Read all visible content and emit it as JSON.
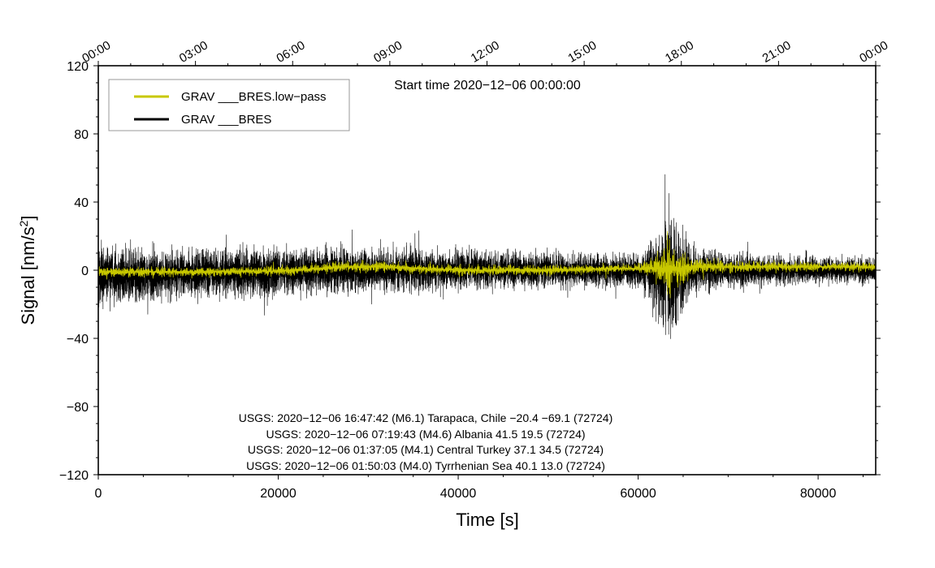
{
  "chart_data": {
    "type": "line",
    "title": "",
    "xlabel": "Time [s]",
    "ylabel_main": "Signal [nm/s",
    "ylabel_sup": "2",
    "ylabel_tail": "]",
    "xlim": [
      0,
      86400
    ],
    "ylim": [
      -120,
      120
    ],
    "x_ticks": [
      0,
      20000,
      40000,
      60000,
      80000
    ],
    "x_tick_labels": [
      "0",
      "20000",
      "40000",
      "60000",
      "80000"
    ],
    "y_ticks": [
      -120,
      -80,
      -40,
      0,
      40,
      80,
      120
    ],
    "y_tick_labels": [
      "−120",
      "−80",
      "−40",
      "0",
      "40",
      "80",
      "120"
    ],
    "top_ticks": [
      0,
      10800,
      21600,
      32400,
      43200,
      54000,
      64800,
      75600,
      86400
    ],
    "top_tick_labels": [
      "00:00",
      "03:00",
      "06:00",
      "09:00",
      "12:00",
      "15:00",
      "18:00",
      "21:00",
      "00:00"
    ],
    "start_time_label": "Start time 2020−12−06 00:00:00",
    "legend_position": "top-left",
    "grid": false,
    "series": [
      {
        "name": "GRAV ___BRES.low−pass",
        "color": "#c8c800",
        "envelope_x": [
          0,
          5000,
          10000,
          20000,
          28000,
          32000,
          40000,
          50000,
          58000,
          61000,
          62500,
          63500,
          64500,
          66000,
          70000,
          80000,
          86400
        ],
        "envelope_amp": [
          5,
          4,
          4,
          4,
          5,
          5,
          4,
          4,
          4,
          5,
          14,
          28,
          18,
          8,
          5,
          4,
          4
        ],
        "envelope_offset": [
          -1,
          -1,
          -1,
          -0.5,
          2,
          2,
          0,
          0,
          1,
          1,
          1,
          1,
          1,
          2,
          2,
          2,
          2
        ]
      },
      {
        "name": "GRAV ___BRES",
        "color": "#000000",
        "envelope_x": [
          0,
          2000,
          10000,
          20000,
          30000,
          40000,
          50000,
          58000,
          60500,
          62000,
          63000,
          64000,
          64800,
          66000,
          70000,
          80000,
          86400
        ],
        "envelope_amp": [
          26,
          22,
          20,
          19,
          18,
          16,
          14,
          13,
          14,
          38,
          52,
          48,
          35,
          18,
          13,
          11,
          11
        ],
        "envelope_offset": [
          -3,
          -3,
          -2,
          -1,
          0,
          0,
          0,
          0,
          0,
          -2,
          -2,
          -3,
          -2,
          0,
          0,
          0,
          0
        ]
      }
    ],
    "annotations": [
      "USGS: 2020−12−06 16:47:42 (M6.1) Tarapaca, Chile −20.4 −69.1 (72724)",
      "USGS: 2020−12−06 07:19:43 (M4.6) Albania 41.5 19.5 (72724)",
      "USGS: 2020−12−06 01:37:05 (M4.1) Central Turkey 37.1 34.5 (72724)",
      "USGS: 2020−12−06 01:50:03 (M4.0) Tyrrhenian Sea 40.1 13.0 (72724)"
    ]
  }
}
